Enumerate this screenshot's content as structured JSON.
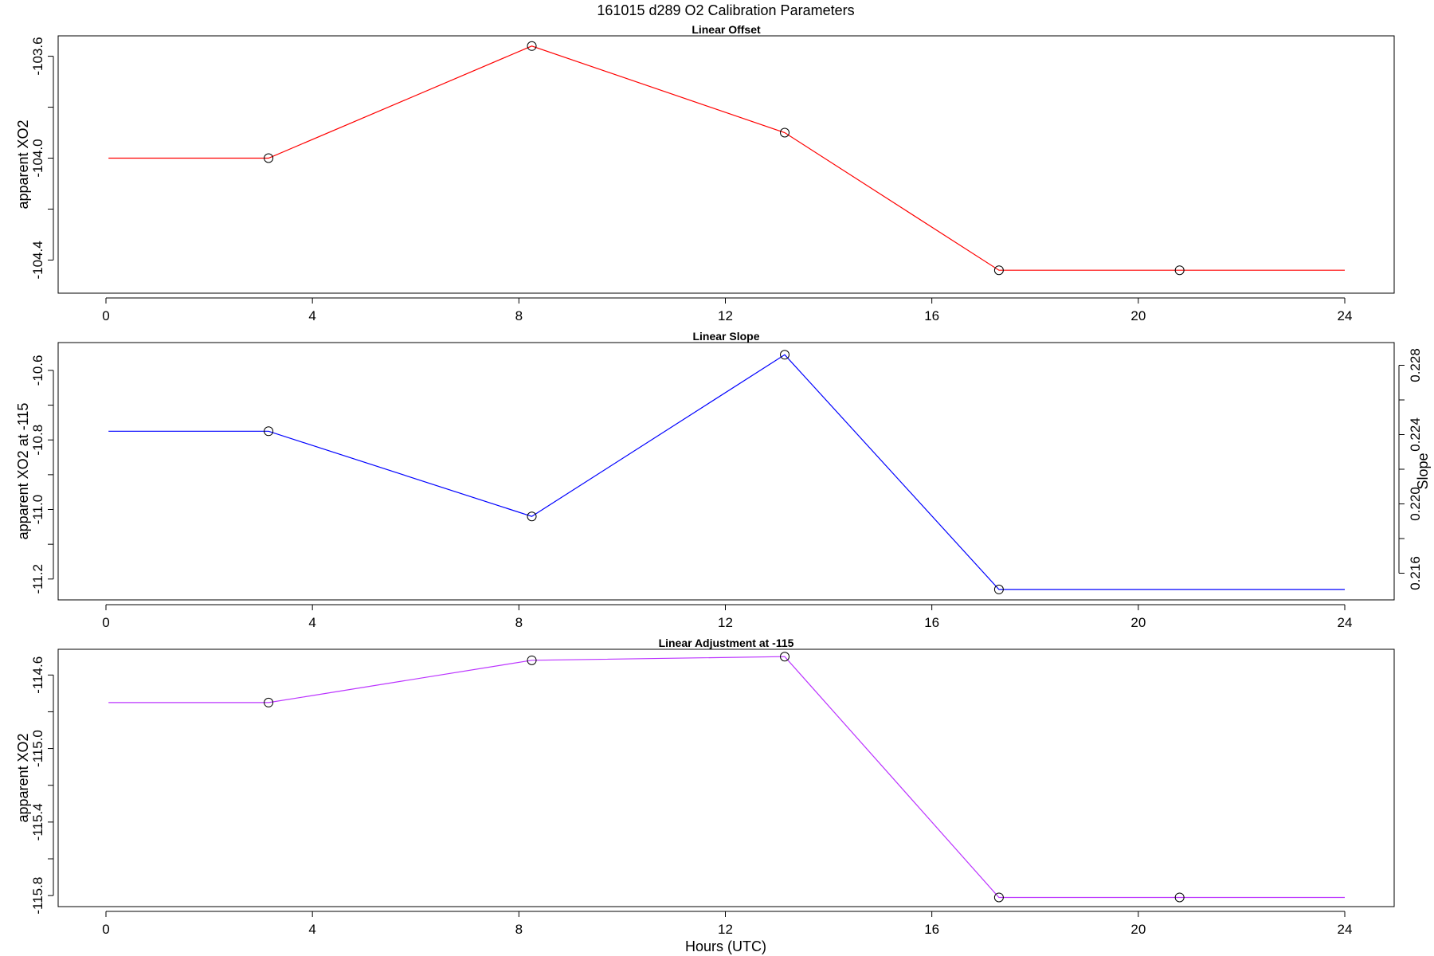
{
  "main_title": "161015   d289   O2 Calibration Parameters",
  "x_axis_label": "Hours (UTC)",
  "chart_data": [
    {
      "type": "line",
      "title": "Linear Offset",
      "ylabel": "apparent XO2",
      "xlim": [
        0,
        24
      ],
      "xticks": [
        0,
        4,
        8,
        12,
        16,
        20,
        24
      ],
      "xtick_labels": [
        "0",
        "4",
        "8",
        "12",
        "16",
        "20",
        "24"
      ],
      "ylim": [
        -104.53,
        -103.52
      ],
      "yticks": [
        -103.6,
        -103.8,
        -104.0,
        -104.2,
        -104.4
      ],
      "ytick_labels": [
        "-103.6",
        "",
        "-104.0",
        "",
        "-104.4"
      ],
      "color": "#ff0000",
      "series": [
        {
          "x": [
            0.05,
            3.15,
            8.25,
            13.15,
            17.3,
            20.8,
            24.0
          ],
          "y": [
            -104.0,
            -104.0,
            -103.56,
            -103.9,
            -104.44,
            -104.44,
            -104.44
          ]
        }
      ],
      "markers": {
        "x": [
          3.15,
          8.25,
          13.15,
          17.3,
          20.8
        ],
        "y": [
          -104.0,
          -103.56,
          -103.9,
          -104.44,
          -104.44
        ]
      }
    },
    {
      "type": "line",
      "title": "Linear Slope",
      "ylabel": "apparent XO2 at -115",
      "ylabel_right": "Slope",
      "xlim": [
        0,
        24
      ],
      "xticks": [
        0,
        4,
        8,
        12,
        16,
        20,
        24
      ],
      "xtick_labels": [
        "0",
        "4",
        "8",
        "12",
        "16",
        "20",
        "24"
      ],
      "ylim": [
        -11.26,
        -10.52
      ],
      "yticks": [
        -10.6,
        -10.7,
        -10.8,
        -10.9,
        -11.0,
        -11.1,
        -11.2
      ],
      "ytick_labels": [
        "-10.6",
        "",
        "-10.8",
        "",
        "-11.0",
        "",
        "-11.2"
      ],
      "ylim_right": [
        0.21446,
        0.22931
      ],
      "yticks_right": [
        0.216,
        0.218,
        0.22,
        0.222,
        0.224,
        0.226,
        0.228
      ],
      "ytick_labels_right": [
        "0.216",
        "",
        "0.220",
        "",
        "0.224",
        "",
        "0.228"
      ],
      "color": "#0000ff",
      "series": [
        {
          "x": [
            0.05,
            3.15,
            8.25,
            13.15,
            17.3,
            20.8,
            24.0
          ],
          "y": [
            -10.775,
            -10.775,
            -11.02,
            -10.555,
            -11.23,
            -11.23,
            -11.23
          ]
        }
      ],
      "markers": {
        "x": [
          3.15,
          8.25,
          13.15,
          17.3
        ],
        "y": [
          -10.775,
          -11.02,
          -10.555,
          -11.23
        ]
      }
    },
    {
      "type": "line",
      "title": "Linear Adjustment at -115",
      "ylabel": "apparent XO2",
      "xlim": [
        0,
        24
      ],
      "xticks": [
        0,
        4,
        8,
        12,
        16,
        20,
        24
      ],
      "xtick_labels": [
        "0",
        "4",
        "8",
        "12",
        "16",
        "20",
        "24"
      ],
      "ylim": [
        -115.86,
        -114.46
      ],
      "yticks": [
        -114.6,
        -114.8,
        -115.0,
        -115.2,
        -115.4,
        -115.6,
        -115.8
      ],
      "ytick_labels": [
        "-114.6",
        "",
        "-115.0",
        "",
        "-115.4",
        "",
        "-115.8"
      ],
      "color": "#bb33ff",
      "series": [
        {
          "x": [
            0.05,
            3.15,
            8.25,
            13.15,
            17.3,
            20.8,
            24.0
          ],
          "y": [
            -114.75,
            -114.75,
            -114.52,
            -114.5,
            -115.81,
            -115.81,
            -115.81
          ]
        }
      ],
      "markers": {
        "x": [
          3.15,
          8.25,
          13.15,
          17.3,
          20.8
        ],
        "y": [
          -114.75,
          -114.52,
          -114.5,
          -115.81,
          -115.81
        ]
      }
    }
  ]
}
